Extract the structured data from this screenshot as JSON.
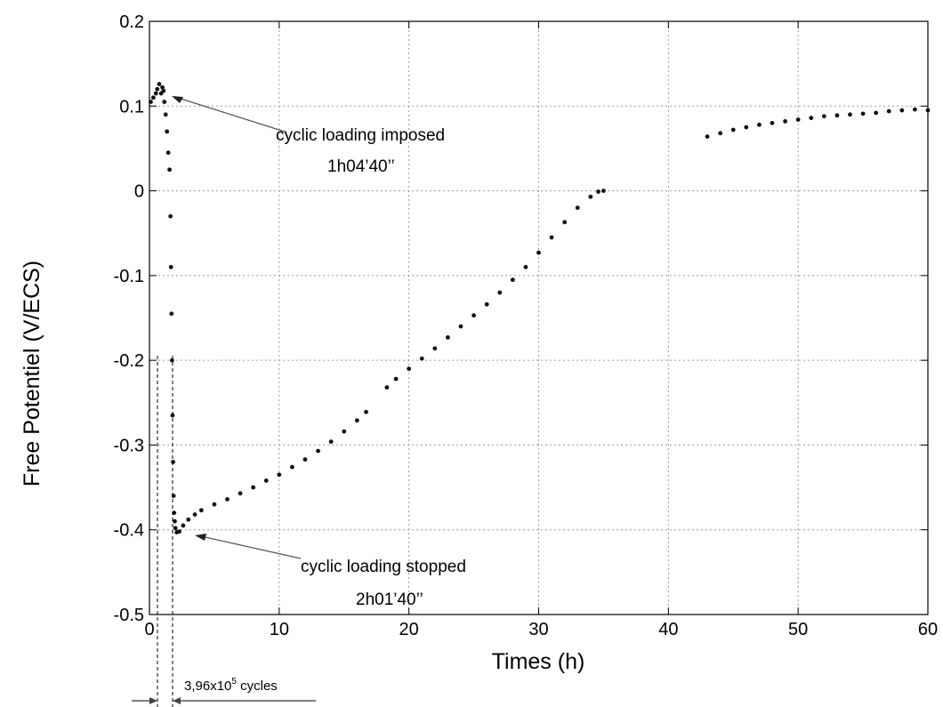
{
  "chart_data": {
    "type": "scatter",
    "xlabel": "Times (h)",
    "ylabel": "Free Potentiel (V/ECS)",
    "xlim": [
      0,
      60
    ],
    "ylim": [
      -0.5,
      0.2
    ],
    "grid": true,
    "x_ticks": [
      "0",
      "10",
      "20",
      "30",
      "40",
      "50",
      "60"
    ],
    "y_ticks": [
      "0.2",
      "0.1",
      "0",
      "-0.1",
      "-0.2",
      "-0.3",
      "-0.4",
      "-0.5"
    ],
    "series": [
      {
        "color": "#111111",
        "points": [
          [
            0.1,
            0.105
          ],
          [
            0.3,
            0.11
          ],
          [
            0.5,
            0.115
          ],
          [
            0.6,
            0.12
          ],
          [
            0.75,
            0.126
          ],
          [
            0.9,
            0.115
          ],
          [
            1.0,
            0.122
          ],
          [
            1.08,
            0.118
          ],
          [
            1.15,
            0.105
          ],
          [
            1.25,
            0.09
          ],
          [
            1.35,
            0.07
          ],
          [
            1.45,
            0.045
          ],
          [
            1.55,
            0.025
          ],
          [
            1.62,
            -0.03
          ],
          [
            1.66,
            -0.09
          ],
          [
            1.7,
            -0.145
          ],
          [
            1.74,
            -0.2
          ],
          [
            1.78,
            -0.265
          ],
          [
            1.82,
            -0.32
          ],
          [
            1.86,
            -0.36
          ],
          [
            1.9,
            -0.38
          ],
          [
            1.95,
            -0.39
          ],
          [
            2.0,
            -0.398
          ],
          [
            2.1,
            -0.403
          ],
          [
            2.3,
            -0.402
          ],
          [
            2.6,
            -0.395
          ],
          [
            3.0,
            -0.388
          ],
          [
            3.5,
            -0.382
          ],
          [
            4.0,
            -0.377
          ],
          [
            5.0,
            -0.37
          ],
          [
            6.0,
            -0.364
          ],
          [
            7.0,
            -0.357
          ],
          [
            8.0,
            -0.35
          ],
          [
            9.0,
            -0.342
          ],
          [
            10.0,
            -0.335
          ],
          [
            11.0,
            -0.326
          ],
          [
            12.0,
            -0.317
          ],
          [
            13.0,
            -0.307
          ],
          [
            14.0,
            -0.296
          ],
          [
            15.0,
            -0.284
          ],
          [
            16.0,
            -0.271
          ],
          [
            16.7,
            -0.261
          ],
          [
            18.3,
            -0.232
          ],
          [
            19.0,
            -0.222
          ],
          [
            20.0,
            -0.21
          ],
          [
            21.0,
            -0.198
          ],
          [
            22.0,
            -0.186
          ],
          [
            23.0,
            -0.173
          ],
          [
            24.0,
            -0.16
          ],
          [
            25.0,
            -0.147
          ],
          [
            26.0,
            -0.134
          ],
          [
            27.0,
            -0.12
          ],
          [
            28.0,
            -0.105
          ],
          [
            29.0,
            -0.09
          ],
          [
            30.0,
            -0.073
          ],
          [
            31.0,
            -0.055
          ],
          [
            32.0,
            -0.037
          ],
          [
            33.0,
            -0.02
          ],
          [
            34.0,
            -0.007
          ],
          [
            34.6,
            -0.001
          ],
          [
            35.0,
            0.0
          ],
          [
            43.0,
            0.064
          ],
          [
            44.0,
            0.068
          ],
          [
            45.0,
            0.072
          ],
          [
            46.0,
            0.075
          ],
          [
            47.0,
            0.078
          ],
          [
            48.0,
            0.08
          ],
          [
            49.0,
            0.082
          ],
          [
            50.0,
            0.084
          ],
          [
            51.0,
            0.086
          ],
          [
            52.0,
            0.088
          ],
          [
            53.0,
            0.089
          ],
          [
            54.0,
            0.09
          ],
          [
            55.0,
            0.091
          ],
          [
            56.0,
            0.092
          ],
          [
            57.0,
            0.094
          ],
          [
            58.0,
            0.095
          ],
          [
            59.0,
            0.096
          ],
          [
            60.0,
            0.095
          ]
        ]
      }
    ],
    "annotations": [
      {
        "line1": "cyclic loading imposed",
        "line2": "1h04’40’’",
        "x": 1.1,
        "y": 0.115
      },
      {
        "line1": "cyclic loading stopped",
        "line2": "2h01’40’’",
        "x": 2.1,
        "y": -0.41
      }
    ],
    "cycles_label_main": "3,96x10",
    "cycles_label_exp": "5",
    "cycles_label_unit": " cycles"
  }
}
